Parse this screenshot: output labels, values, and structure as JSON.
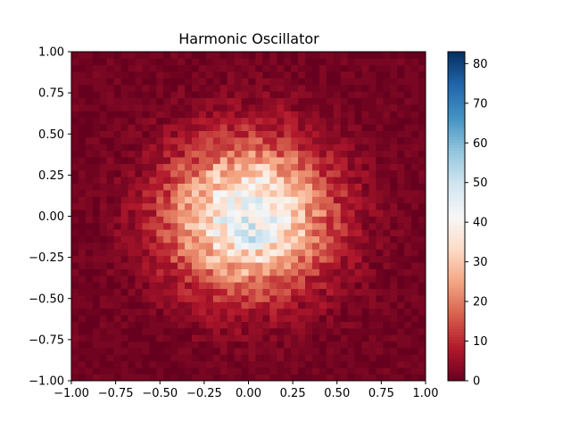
{
  "chart_data": {
    "type": "heatmap",
    "title": "Harmonic Oscillator",
    "xlabel": "",
    "ylabel": "",
    "xlim": [
      -1.0,
      1.0
    ],
    "ylim": [
      -1.0,
      1.0
    ],
    "x_ticks": [
      -1.0,
      -0.75,
      -0.5,
      -0.25,
      0.0,
      0.25,
      0.5,
      0.75,
      1.0
    ],
    "x_tick_labels": [
      "−1.00",
      "−0.75",
      "−0.50",
      "−0.25",
      "0.00",
      "0.25",
      "0.50",
      "0.75",
      "1.00"
    ],
    "y_ticks": [
      -1.0,
      -0.75,
      -0.5,
      -0.25,
      0.0,
      0.25,
      0.5,
      0.75,
      1.0
    ],
    "y_tick_labels": [
      "−1.00",
      "−0.75",
      "−0.50",
      "−0.25",
      "0.00",
      "0.25",
      "0.50",
      "0.75",
      "1.00"
    ],
    "colorbar": {
      "colormap": "RdBu",
      "vmin": 0,
      "vmax": 83,
      "ticks": [
        0,
        10,
        20,
        30,
        40,
        50,
        60,
        70,
        80
      ],
      "tick_labels": [
        "0",
        "10",
        "20",
        "30",
        "40",
        "50",
        "60",
        "70",
        "80"
      ]
    },
    "grid": false,
    "bins": {
      "nx": 50,
      "ny": 50
    },
    "distribution": {
      "kind": "2D Gaussian histogram",
      "center": [
        0.0,
        0.0
      ],
      "sigma": 0.3,
      "peak_count": 45,
      "max_count": 83,
      "max_cell_xy": [
        0.02,
        -0.14
      ]
    }
  }
}
